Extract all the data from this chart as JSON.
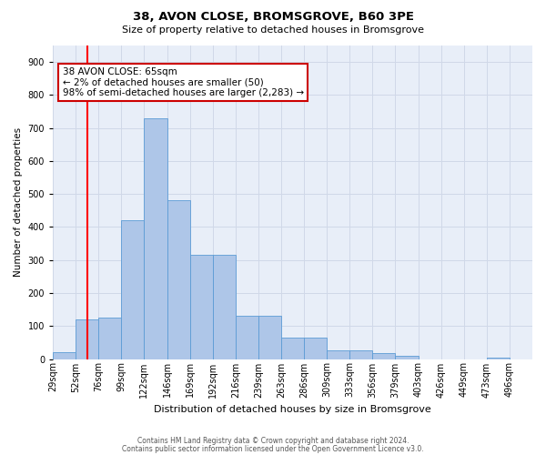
{
  "title": "38, AVON CLOSE, BROMSGROVE, B60 3PE",
  "subtitle": "Size of property relative to detached houses in Bromsgrove",
  "xlabel": "Distribution of detached houses by size in Bromsgrove",
  "ylabel": "Number of detached properties",
  "bin_labels": [
    "29sqm",
    "52sqm",
    "76sqm",
    "99sqm",
    "122sqm",
    "146sqm",
    "169sqm",
    "192sqm",
    "216sqm",
    "239sqm",
    "263sqm",
    "286sqm",
    "309sqm",
    "333sqm",
    "356sqm",
    "379sqm",
    "403sqm",
    "426sqm",
    "449sqm",
    "473sqm",
    "496sqm"
  ],
  "bar_heights": [
    20,
    120,
    125,
    420,
    730,
    480,
    315,
    315,
    130,
    130,
    65,
    65,
    25,
    25,
    18,
    10,
    0,
    0,
    0,
    5,
    0
  ],
  "bar_color": "#aec6e8",
  "bar_edge_color": "#5b9bd5",
  "grid_color": "#d0d8e8",
  "vline_x": 1.5,
  "vline_color": "red",
  "annotation_text": "38 AVON CLOSE: 65sqm\n← 2% of detached houses are smaller (50)\n98% of semi-detached houses are larger (2,283) →",
  "annotation_box_color": "white",
  "annotation_box_edge": "#cc0000",
  "ylim": [
    0,
    950
  ],
  "yticks": [
    0,
    100,
    200,
    300,
    400,
    500,
    600,
    700,
    800,
    900
  ],
  "footer1": "Contains HM Land Registry data © Crown copyright and database right 2024.",
  "footer2": "Contains public sector information licensed under the Open Government Licence v3.0.",
  "bg_color": "#e8eef8",
  "title_fontsize": 9.5,
  "subtitle_fontsize": 8,
  "xlabel_fontsize": 8,
  "ylabel_fontsize": 7.5,
  "tick_fontsize": 7,
  "footer_fontsize": 5.5,
  "ann_fontsize": 7.5
}
